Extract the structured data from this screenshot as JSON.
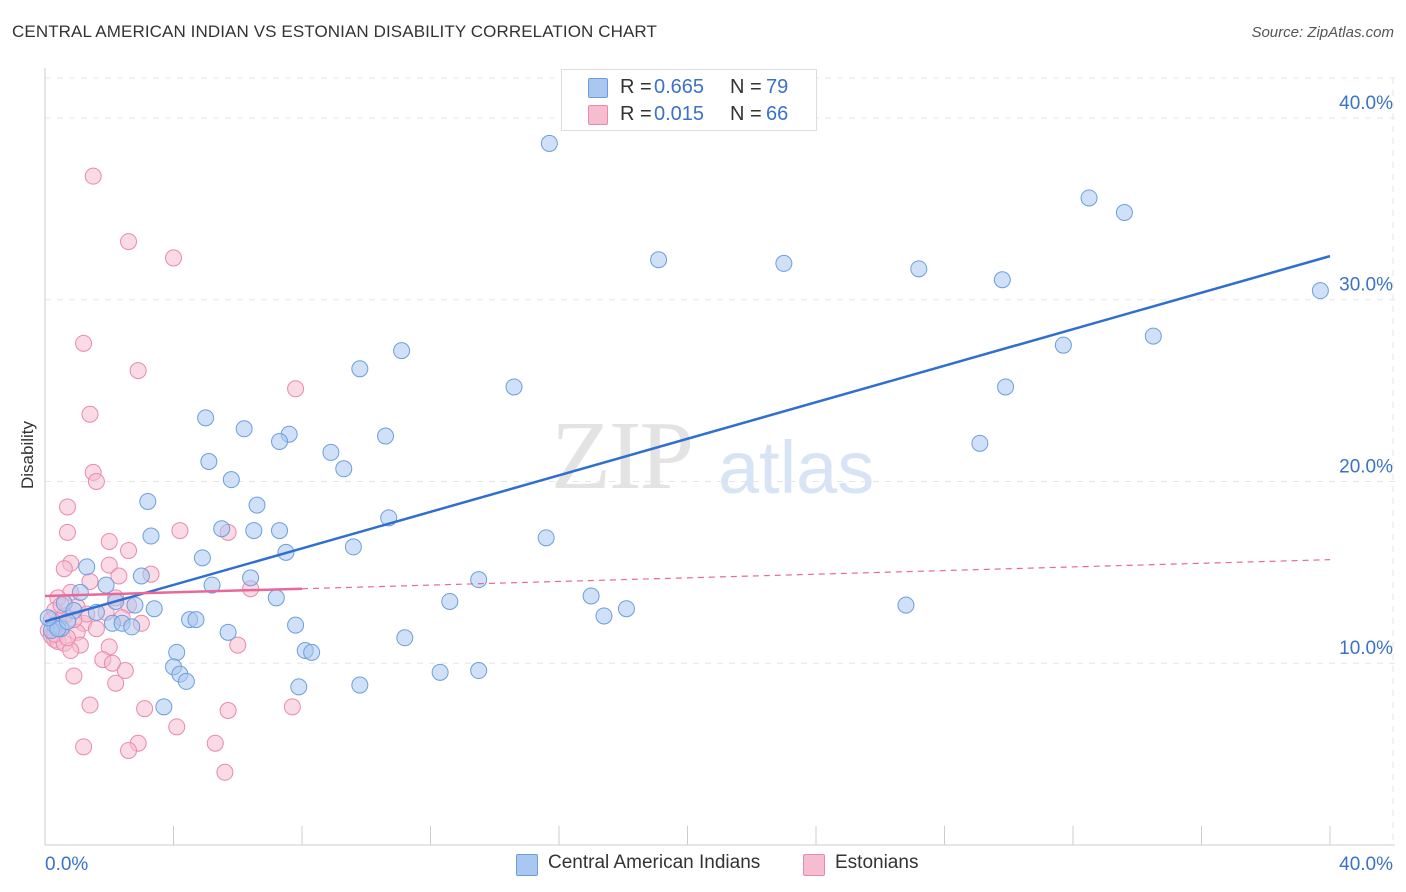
{
  "header": {
    "title": "CENTRAL AMERICAN INDIAN VS ESTONIAN DISABILITY CORRELATION CHART",
    "source": "Source: ZipAtlas.com"
  },
  "watermark": {
    "zip": "ZIP",
    "atlas": "atlas"
  },
  "legend_top": {
    "rows": [
      {
        "r_label": "R =",
        "r_value": "0.665",
        "n_label": "N =",
        "n_value": "79"
      },
      {
        "r_label": "R =",
        "r_value": "0.015",
        "n_label": "N =",
        "n_value": "66"
      }
    ]
  },
  "legend_bottom": {
    "items": [
      {
        "label": "Central American Indians"
      },
      {
        "label": "Estonians"
      }
    ]
  },
  "colors": {
    "blue_fill": "#a9c7ef",
    "blue_stroke": "#6b9ee0",
    "blue_line": "#2f6fcf",
    "pink_fill": "#f6bcd0",
    "pink_stroke": "#e98aac",
    "pink_line": "#e8689a",
    "tick_label": "#3a72c9",
    "grid": "#e5e5e5"
  },
  "chart_data": {
    "type": "scatter",
    "title": "CENTRAL AMERICAN INDIAN VS ESTONIAN DISABILITY CORRELATION CHART",
    "xlabel": "",
    "ylabel": "Disability",
    "xlim": [
      0,
      40
    ],
    "ylim": [
      0,
      40
    ],
    "x_tick_labels": [
      "0.0%",
      "40.0%"
    ],
    "y_ticks": [
      10,
      20,
      30,
      40
    ],
    "y_tick_labels": [
      "10.0%",
      "20.0%",
      "30.0%",
      "40.0%"
    ],
    "grid": true,
    "legend_position": "top-center",
    "series": [
      {
        "name": "Central American Indians",
        "r": 0.665,
        "n": 79,
        "trend": {
          "x": [
            0,
            40
          ],
          "y": [
            12.3,
            32.4
          ],
          "dashed_extension": false
        },
        "points": [
          [
            15.7,
            38.6
          ],
          [
            32.5,
            35.6
          ],
          [
            33.6,
            34.8
          ],
          [
            19.1,
            32.2
          ],
          [
            23.0,
            32.0
          ],
          [
            27.2,
            31.7
          ],
          [
            29.8,
            31.1
          ],
          [
            39.7,
            30.5
          ],
          [
            34.5,
            28.0
          ],
          [
            31.7,
            27.5
          ],
          [
            11.1,
            27.2
          ],
          [
            9.8,
            26.2
          ],
          [
            14.6,
            25.2
          ],
          [
            29.9,
            25.2
          ],
          [
            5.0,
            23.5
          ],
          [
            6.2,
            22.9
          ],
          [
            7.6,
            22.6
          ],
          [
            7.3,
            22.2
          ],
          [
            10.6,
            22.5
          ],
          [
            29.1,
            22.1
          ],
          [
            8.9,
            21.6
          ],
          [
            5.1,
            21.1
          ],
          [
            9.3,
            20.7
          ],
          [
            5.8,
            20.1
          ],
          [
            3.2,
            18.9
          ],
          [
            6.6,
            18.7
          ],
          [
            10.7,
            18.0
          ],
          [
            5.5,
            17.4
          ],
          [
            6.5,
            17.3
          ],
          [
            7.3,
            17.3
          ],
          [
            3.3,
            17.0
          ],
          [
            15.6,
            16.9
          ],
          [
            9.6,
            16.4
          ],
          [
            7.5,
            16.1
          ],
          [
            4.9,
            15.8
          ],
          [
            1.3,
            15.3
          ],
          [
            3.0,
            14.8
          ],
          [
            6.4,
            14.7
          ],
          [
            13.5,
            14.6
          ],
          [
            5.2,
            14.3
          ],
          [
            1.9,
            14.3
          ],
          [
            1.1,
            13.9
          ],
          [
            7.2,
            13.6
          ],
          [
            17.0,
            13.7
          ],
          [
            12.6,
            13.4
          ],
          [
            26.8,
            13.2
          ],
          [
            0.6,
            13.3
          ],
          [
            2.2,
            13.4
          ],
          [
            2.8,
            13.2
          ],
          [
            18.1,
            13.0
          ],
          [
            3.4,
            13.0
          ],
          [
            1.6,
            12.8
          ],
          [
            0.9,
            12.9
          ],
          [
            17.4,
            12.6
          ],
          [
            4.5,
            12.4
          ],
          [
            4.7,
            12.4
          ],
          [
            2.1,
            12.2
          ],
          [
            2.4,
            12.2
          ],
          [
            2.7,
            12.0
          ],
          [
            0.3,
            12.1
          ],
          [
            0.5,
            11.9
          ],
          [
            7.8,
            12.1
          ],
          [
            5.7,
            11.7
          ],
          [
            0.2,
            11.8
          ],
          [
            11.2,
            11.4
          ],
          [
            0.4,
            11.9
          ],
          [
            4.1,
            10.6
          ],
          [
            8.1,
            10.7
          ],
          [
            8.3,
            10.6
          ],
          [
            4.0,
            9.8
          ],
          [
            12.3,
            9.5
          ],
          [
            13.5,
            9.6
          ],
          [
            4.2,
            9.4
          ],
          [
            4.4,
            9.0
          ],
          [
            7.9,
            8.7
          ],
          [
            9.8,
            8.8
          ],
          [
            3.7,
            7.6
          ],
          [
            0.1,
            12.5
          ],
          [
            0.7,
            12.3
          ]
        ]
      },
      {
        "name": "Estonians",
        "r": 0.015,
        "n": 66,
        "trend": {
          "x": [
            0,
            8
          ],
          "y": [
            13.7,
            14.1
          ],
          "dashed_extension_to": [
            40,
            15.7
          ]
        },
        "points": [
          [
            1.5,
            36.8
          ],
          [
            2.6,
            33.2
          ],
          [
            4.0,
            32.3
          ],
          [
            1.2,
            27.6
          ],
          [
            2.9,
            26.1
          ],
          [
            7.8,
            25.1
          ],
          [
            1.4,
            23.7
          ],
          [
            1.5,
            20.5
          ],
          [
            1.6,
            20.0
          ],
          [
            0.7,
            18.6
          ],
          [
            0.7,
            17.2
          ],
          [
            4.2,
            17.3
          ],
          [
            5.7,
            17.2
          ],
          [
            2.0,
            16.7
          ],
          [
            2.6,
            16.2
          ],
          [
            0.8,
            15.5
          ],
          [
            0.6,
            15.2
          ],
          [
            2.0,
            15.4
          ],
          [
            3.3,
            14.9
          ],
          [
            2.3,
            14.8
          ],
          [
            6.4,
            14.1
          ],
          [
            1.4,
            14.5
          ],
          [
            0.8,
            13.9
          ],
          [
            0.4,
            13.6
          ],
          [
            2.6,
            13.2
          ],
          [
            1.0,
            13.1
          ],
          [
            0.3,
            12.9
          ],
          [
            1.9,
            12.8
          ],
          [
            0.6,
            12.6
          ],
          [
            0.2,
            12.4
          ],
          [
            2.4,
            12.5
          ],
          [
            1.2,
            12.2
          ],
          [
            0.5,
            12.0
          ],
          [
            0.1,
            11.8
          ],
          [
            1.0,
            11.7
          ],
          [
            0.2,
            11.5
          ],
          [
            0.3,
            11.3
          ],
          [
            0.4,
            11.2
          ],
          [
            0.6,
            11.1
          ],
          [
            1.1,
            11.0
          ],
          [
            2.0,
            10.9
          ],
          [
            0.8,
            10.7
          ],
          [
            6.0,
            11.0
          ],
          [
            1.8,
            10.2
          ],
          [
            2.1,
            10.0
          ],
          [
            2.5,
            9.6
          ],
          [
            0.9,
            9.3
          ],
          [
            2.2,
            8.9
          ],
          [
            1.4,
            7.7
          ],
          [
            3.1,
            7.5
          ],
          [
            4.1,
            6.5
          ],
          [
            5.7,
            7.4
          ],
          [
            7.7,
            7.6
          ],
          [
            2.9,
            5.6
          ],
          [
            1.2,
            5.4
          ],
          [
            2.6,
            5.2
          ],
          [
            5.3,
            5.6
          ],
          [
            5.6,
            4.0
          ],
          [
            0.5,
            13.2
          ],
          [
            1.3,
            12.7
          ],
          [
            0.9,
            12.4
          ],
          [
            0.3,
            11.6
          ],
          [
            0.7,
            11.4
          ],
          [
            1.6,
            11.9
          ],
          [
            3.0,
            12.2
          ],
          [
            2.2,
            13.6
          ]
        ]
      }
    ]
  }
}
